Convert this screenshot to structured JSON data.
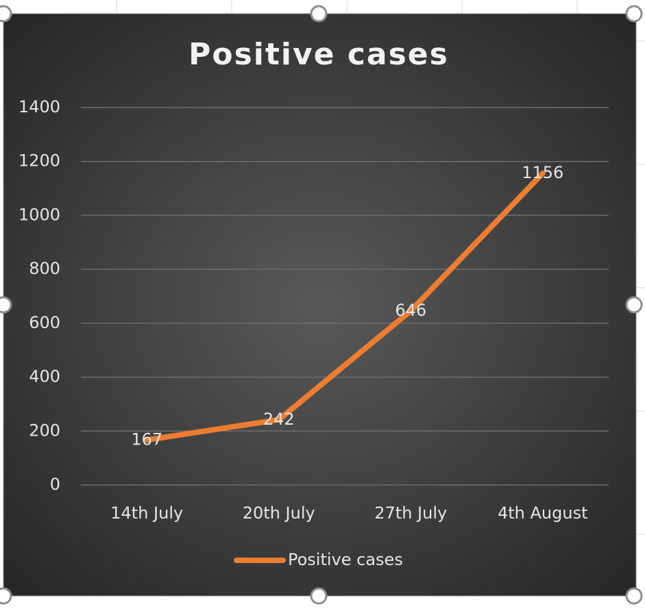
{
  "chart_data": {
    "type": "line",
    "title": "Positive cases",
    "categories": [
      "14th July",
      "20th July",
      "27th July",
      "4th August"
    ],
    "series": [
      {
        "name": "Positive cases",
        "color": "#ed7d31",
        "values": [
          167,
          242,
          646,
          1156
        ]
      }
    ],
    "ylim": [
      0,
      1400
    ],
    "yticks": [
      0,
      200,
      400,
      600,
      800,
      1000,
      1200,
      1400
    ],
    "grid": true,
    "legend": "bottom",
    "data_labels": true
  }
}
